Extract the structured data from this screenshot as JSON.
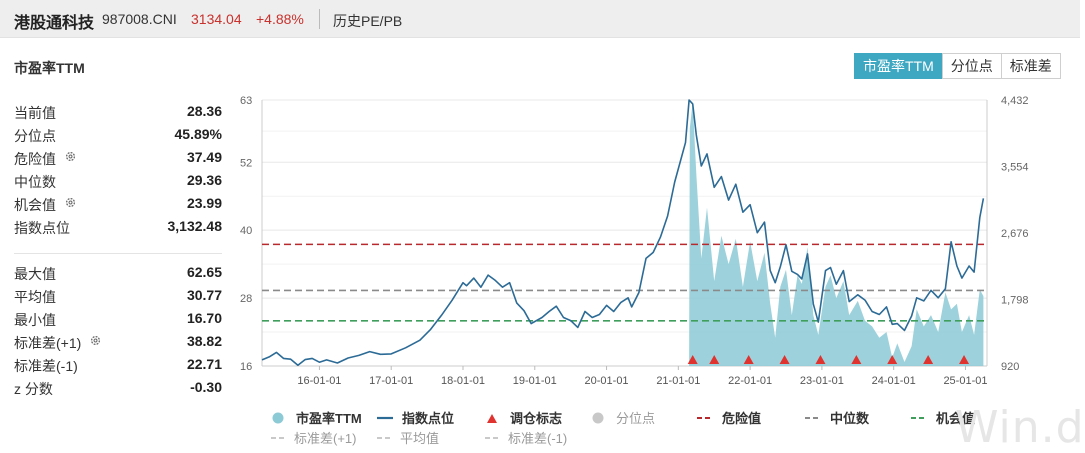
{
  "header": {
    "name": "港股通科技",
    "code": "987008.CNI",
    "price": "3134.04",
    "change": "+4.88%",
    "history_link": "历史PE/PB"
  },
  "section_title": "市盈率TTM",
  "tabs": [
    {
      "label": "市盈率TTM",
      "active": true
    },
    {
      "label": "分位点",
      "active": false
    },
    {
      "label": "标准差",
      "active": false
    }
  ],
  "stats_top": [
    {
      "label": "当前值",
      "value": "28.36",
      "gear": false
    },
    {
      "label": "分位点",
      "value": "45.89%",
      "gear": false
    },
    {
      "label": "危险值",
      "value": "37.49",
      "gear": true
    },
    {
      "label": "中位数",
      "value": "29.36",
      "gear": false
    },
    {
      "label": "机会值",
      "value": "23.99",
      "gear": true
    },
    {
      "label": "指数点位",
      "value": "3,132.48",
      "gear": false
    }
  ],
  "stats_bottom": [
    {
      "label": "最大值",
      "value": "62.65",
      "gear": false
    },
    {
      "label": "平均值",
      "value": "30.77",
      "gear": false
    },
    {
      "label": "最小值",
      "value": "16.70",
      "gear": false
    },
    {
      "label": "标准差(+1)",
      "value": "38.82",
      "gear": true
    },
    {
      "label": "标准差(-1)",
      "value": "22.71",
      "gear": false
    },
    {
      "label": "z 分数",
      "value": "-0.30",
      "gear": false
    }
  ],
  "legend": {
    "row1": [
      {
        "label": "市盈率TTM",
        "kind": "dot",
        "color": "#8ccad6"
      },
      {
        "label": "指数点位",
        "kind": "line",
        "color": "#2c6b96"
      },
      {
        "label": "调仓标志",
        "kind": "triangle",
        "color": "#e0332f"
      },
      {
        "label": "分位点",
        "kind": "dot",
        "color": "#c8c8c8"
      },
      {
        "label": "危险值",
        "kind": "dash",
        "color": "#b8292e"
      },
      {
        "label": "中位数",
        "kind": "dash",
        "color": "#8a8a8a"
      },
      {
        "label": "机会值",
        "kind": "dash",
        "color": "#3f9e5c"
      }
    ],
    "row2": [
      {
        "label": "标准差(+1)",
        "kind": "dash",
        "color": "#c9c9c9"
      },
      {
        "label": "平均值",
        "kind": "dash",
        "color": "#c9c9c9"
      },
      {
        "label": "标准差(-1)",
        "kind": "dash",
        "color": "#c9c9c9"
      }
    ]
  },
  "watermark": "Win.d",
  "colors": {
    "accent": "#3ea7c2",
    "pe_fill": "#8ccad6",
    "index_line": "#2c6b96",
    "danger": "#b8292e",
    "median": "#8a8a8a",
    "opportunity": "#3f9e5c",
    "marker": "#e0332f"
  },
  "chart_data": {
    "type": "area",
    "title": "市盈率TTM",
    "x_tick_labels": [
      "16-01-01",
      "17-01-01",
      "18-01-01",
      "19-01-01",
      "20-01-01",
      "21-01-01",
      "22-01-01",
      "23-01-01",
      "24-01-01",
      "25-01-01"
    ],
    "x_range": [
      2015.2,
      2025.3
    ],
    "y_left": {
      "ticks": [
        "16",
        "28",
        "40",
        "52",
        "63"
      ],
      "range": [
        16,
        63
      ]
    },
    "y_right": {
      "ticks": [
        "920",
        "1,798",
        "2,676",
        "3,554",
        "4,432"
      ],
      "range": [
        920,
        4432
      ]
    },
    "reference_lines": [
      {
        "name": "危险值",
        "value": 37.49,
        "color": "#b8292e"
      },
      {
        "name": "中位数",
        "value": 29.36,
        "color": "#8a8a8a"
      },
      {
        "name": "机会值",
        "value": 23.99,
        "color": "#3f9e5c"
      }
    ],
    "series": [
      {
        "name": "市盈率TTM",
        "axis": "left",
        "points": [
          [
            2021.15,
            16
          ],
          [
            2021.16,
            58.0
          ],
          [
            2021.2,
            62.65
          ],
          [
            2021.25,
            50
          ],
          [
            2021.32,
            35
          ],
          [
            2021.4,
            44
          ],
          [
            2021.5,
            31
          ],
          [
            2021.6,
            39
          ],
          [
            2021.7,
            34
          ],
          [
            2021.8,
            38.5
          ],
          [
            2021.9,
            30
          ],
          [
            2022.0,
            38
          ],
          [
            2022.1,
            31
          ],
          [
            2022.2,
            36
          ],
          [
            2022.28,
            27
          ],
          [
            2022.35,
            21
          ],
          [
            2022.42,
            30
          ],
          [
            2022.5,
            33
          ],
          [
            2022.58,
            25
          ],
          [
            2022.66,
            32
          ],
          [
            2022.72,
            30.5
          ],
          [
            2022.8,
            37
          ],
          [
            2022.88,
            25
          ],
          [
            2022.95,
            21.5
          ],
          [
            2023.05,
            30
          ],
          [
            2023.12,
            32
          ],
          [
            2023.2,
            28
          ],
          [
            2023.3,
            31
          ],
          [
            2023.38,
            25
          ],
          [
            2023.5,
            27.5
          ],
          [
            2023.6,
            24
          ],
          [
            2023.7,
            23
          ],
          [
            2023.8,
            21
          ],
          [
            2023.9,
            22
          ],
          [
            2023.98,
            17.5
          ],
          [
            2024.05,
            20
          ],
          [
            2024.15,
            16.7
          ],
          [
            2024.25,
            19.5
          ],
          [
            2024.32,
            26
          ],
          [
            2024.42,
            23
          ],
          [
            2024.52,
            25
          ],
          [
            2024.62,
            22
          ],
          [
            2024.72,
            29
          ],
          [
            2024.8,
            26
          ],
          [
            2024.88,
            27
          ],
          [
            2024.95,
            22
          ],
          [
            2025.05,
            25
          ],
          [
            2025.12,
            21.5
          ],
          [
            2025.2,
            29.5
          ],
          [
            2025.25,
            28.36
          ],
          [
            2025.25,
            16
          ]
        ]
      },
      {
        "name": "指数点位",
        "axis": "right",
        "points": [
          [
            2015.2,
            1000
          ],
          [
            2015.3,
            1040
          ],
          [
            2015.4,
            1100
          ],
          [
            2015.5,
            1020
          ],
          [
            2015.6,
            1010
          ],
          [
            2015.7,
            930
          ],
          [
            2015.8,
            1005
          ],
          [
            2015.9,
            1020
          ],
          [
            2016.0,
            970
          ],
          [
            2016.1,
            1000
          ],
          [
            2016.25,
            960
          ],
          [
            2016.4,
            1025
          ],
          [
            2016.55,
            1060
          ],
          [
            2016.7,
            1110
          ],
          [
            2016.85,
            1075
          ],
          [
            2017.0,
            1080
          ],
          [
            2017.2,
            1160
          ],
          [
            2017.4,
            1260
          ],
          [
            2017.55,
            1405
          ],
          [
            2017.7,
            1590
          ],
          [
            2017.85,
            1790
          ],
          [
            2018.0,
            2020
          ],
          [
            2018.05,
            1980
          ],
          [
            2018.15,
            2080
          ],
          [
            2018.25,
            1960
          ],
          [
            2018.35,
            2120
          ],
          [
            2018.45,
            2050
          ],
          [
            2018.55,
            1960
          ],
          [
            2018.65,
            2020
          ],
          [
            2018.75,
            1750
          ],
          [
            2018.85,
            1650
          ],
          [
            2018.95,
            1480
          ],
          [
            2019.1,
            1560
          ],
          [
            2019.2,
            1640
          ],
          [
            2019.3,
            1710
          ],
          [
            2019.4,
            1560
          ],
          [
            2019.5,
            1520
          ],
          [
            2019.6,
            1430
          ],
          [
            2019.7,
            1640
          ],
          [
            2019.8,
            1560
          ],
          [
            2019.9,
            1600
          ],
          [
            2020.0,
            1720
          ],
          [
            2020.1,
            1640
          ],
          [
            2020.2,
            1760
          ],
          [
            2020.3,
            1820
          ],
          [
            2020.35,
            1700
          ],
          [
            2020.45,
            1890
          ],
          [
            2020.55,
            2340
          ],
          [
            2020.65,
            2420
          ],
          [
            2020.75,
            2620
          ],
          [
            2020.85,
            2900
          ],
          [
            2020.95,
            3350
          ],
          [
            2021.1,
            3870
          ],
          [
            2021.15,
            4432
          ],
          [
            2021.2,
            4380
          ],
          [
            2021.25,
            3970
          ],
          [
            2021.32,
            3560
          ],
          [
            2021.4,
            3720
          ],
          [
            2021.5,
            3280
          ],
          [
            2021.6,
            3420
          ],
          [
            2021.7,
            3110
          ],
          [
            2021.8,
            3320
          ],
          [
            2021.9,
            2950
          ],
          [
            2022.0,
            3050
          ],
          [
            2022.1,
            2680
          ],
          [
            2022.2,
            2820
          ],
          [
            2022.28,
            2180
          ],
          [
            2022.35,
            2020
          ],
          [
            2022.42,
            2230
          ],
          [
            2022.5,
            2520
          ],
          [
            2022.58,
            2170
          ],
          [
            2022.66,
            2130
          ],
          [
            2022.72,
            2070
          ],
          [
            2022.8,
            2400
          ],
          [
            2022.88,
            1740
          ],
          [
            2022.95,
            1500
          ],
          [
            2023.05,
            2180
          ],
          [
            2023.12,
            2220
          ],
          [
            2023.2,
            2000
          ],
          [
            2023.3,
            2180
          ],
          [
            2023.38,
            1770
          ],
          [
            2023.5,
            1860
          ],
          [
            2023.6,
            1790
          ],
          [
            2023.7,
            1640
          ],
          [
            2023.8,
            1600
          ],
          [
            2023.9,
            1700
          ],
          [
            2023.98,
            1470
          ],
          [
            2024.05,
            1480
          ],
          [
            2024.15,
            1390
          ],
          [
            2024.25,
            1580
          ],
          [
            2024.32,
            1820
          ],
          [
            2024.42,
            1780
          ],
          [
            2024.52,
            1920
          ],
          [
            2024.62,
            1820
          ],
          [
            2024.72,
            1940
          ],
          [
            2024.8,
            2560
          ],
          [
            2024.88,
            2240
          ],
          [
            2024.95,
            2080
          ],
          [
            2025.05,
            2240
          ],
          [
            2025.12,
            2160
          ],
          [
            2025.2,
            2880
          ],
          [
            2025.25,
            3132.48
          ]
        ]
      },
      {
        "name": "调仓标志",
        "type": "markers",
        "x": [
          2021.2,
          2021.5,
          2021.98,
          2022.48,
          2022.98,
          2023.48,
          2023.98,
          2024.48,
          2024.98
        ]
      }
    ]
  }
}
